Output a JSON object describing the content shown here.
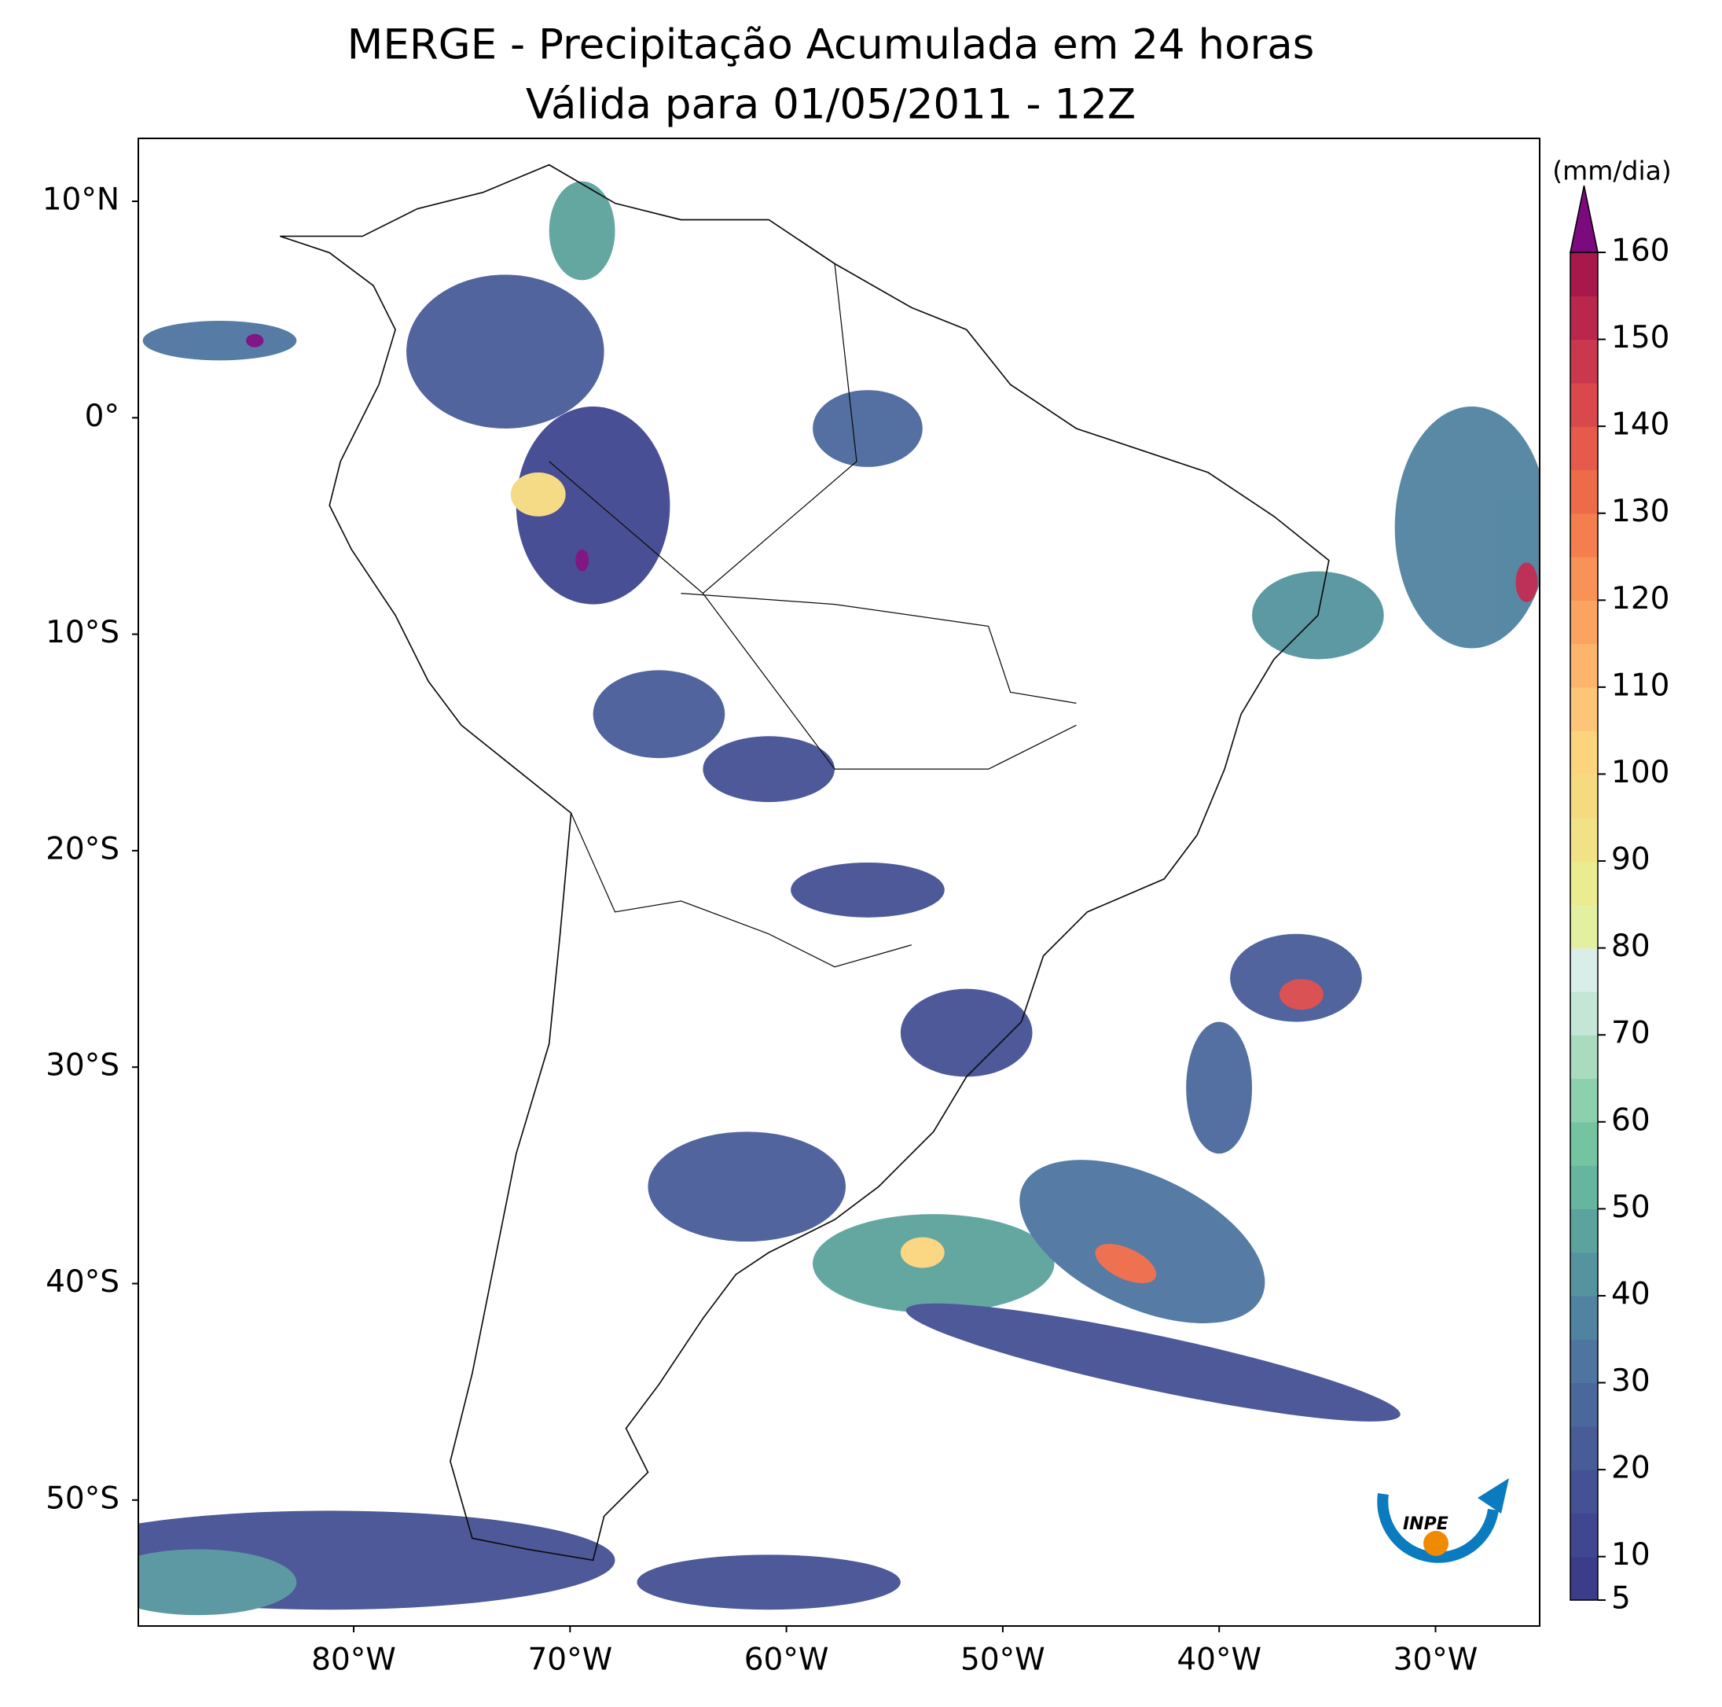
{
  "title": "MERGE - Precipitação Acumulada em 24 horas",
  "subtitle": "Válida para 01/05/2011 - 12Z",
  "map": {
    "lat_labels": [
      "10°N",
      "0°",
      "10°S",
      "20°S",
      "30°S",
      "40°S",
      "50°S"
    ],
    "lon_labels": [
      "80°W",
      "70°W",
      "60°W",
      "50°W",
      "40°W",
      "30°W"
    ]
  },
  "colorbar": {
    "label": "(mm/dia)",
    "range": [
      5,
      160
    ],
    "ticks": [
      5,
      10,
      20,
      30,
      40,
      50,
      60,
      70,
      80,
      90,
      100,
      110,
      120,
      130,
      140,
      150,
      160
    ],
    "colors": [
      "#3b3d8a",
      "#40468f",
      "#445194",
      "#485c98",
      "#4b689c",
      "#4e74a0",
      "#5083a0",
      "#55949e",
      "#5ca39d",
      "#66b59e",
      "#74c4a2",
      "#8dd0ad",
      "#a9dbbf",
      "#c4e6d6",
      "#d9eee8",
      "#e2f0a0",
      "#ebeb8f",
      "#f1e287",
      "#f6da80",
      "#fbd47d",
      "#fdc577",
      "#fdb56d",
      "#fba462",
      "#f89257",
      "#f47e4d",
      "#ee6b49",
      "#e55a4a",
      "#d9494b",
      "#ca384d",
      "#b9274c",
      "#a8184b"
    ],
    "extend_color": "#7b0a7e"
  },
  "logo": "INPE"
}
